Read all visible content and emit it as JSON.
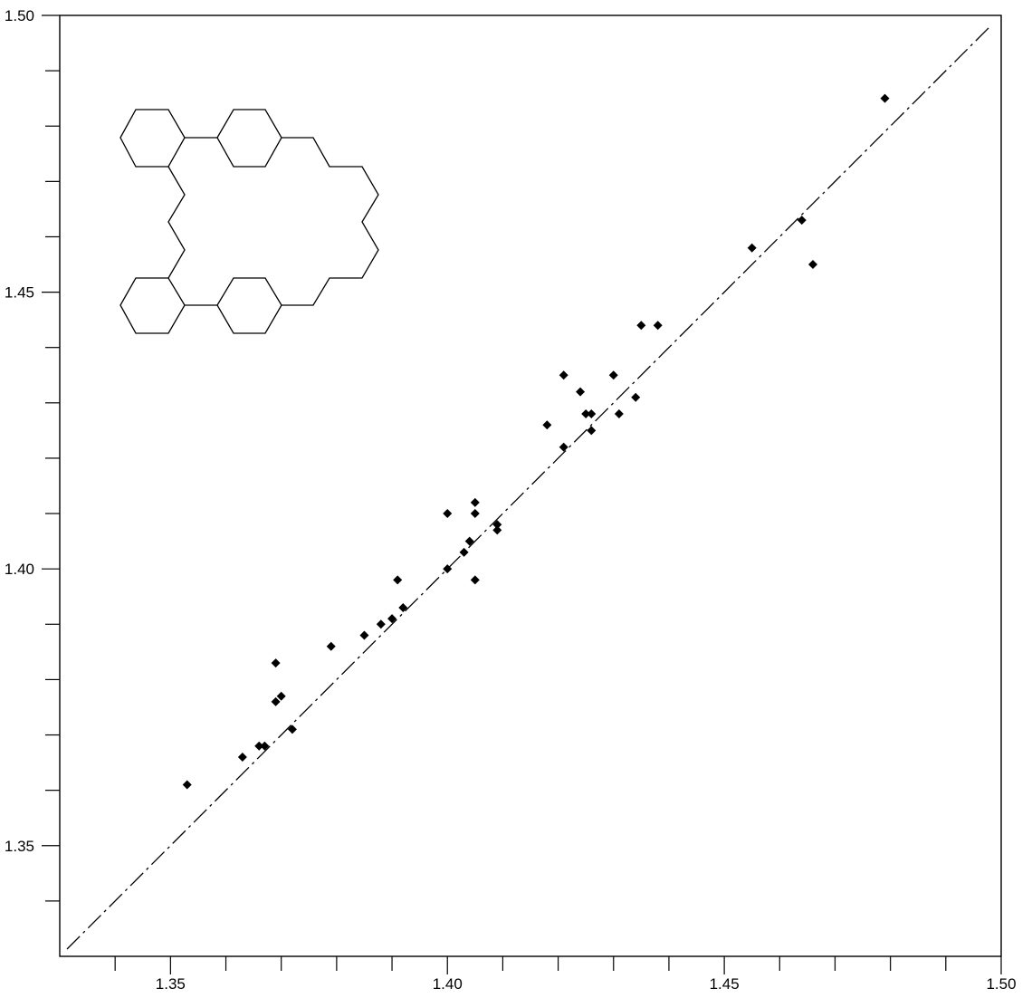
{
  "chart_data": {
    "type": "scatter",
    "title": "",
    "xlabel": "",
    "ylabel": "",
    "xlim": [
      1.33,
      1.5
    ],
    "ylim": [
      1.33,
      1.5
    ],
    "x_ticks": [
      "1.35",
      "1.40",
      "1.45",
      "1.50"
    ],
    "y_ticks": [
      "1.35",
      "1.40",
      "1.45",
      "1.50"
    ],
    "grid": false,
    "legend": "none",
    "reference_line": {
      "style": "dash-dot",
      "from": [
        1.33,
        1.33
      ],
      "to": [
        1.5,
        1.5
      ]
    },
    "marker": "diamond",
    "marker_color": "#000000",
    "inset": "molecule-structure-diagram",
    "points": [
      [
        1.479,
        1.485
      ],
      [
        1.464,
        1.463
      ],
      [
        1.466,
        1.455
      ],
      [
        1.455,
        1.458
      ],
      [
        1.438,
        1.444
      ],
      [
        1.435,
        1.444
      ],
      [
        1.421,
        1.435
      ],
      [
        1.43,
        1.435
      ],
      [
        1.424,
        1.432
      ],
      [
        1.434,
        1.431
      ],
      [
        1.425,
        1.428
      ],
      [
        1.426,
        1.428
      ],
      [
        1.431,
        1.428
      ],
      [
        1.418,
        1.426
      ],
      [
        1.426,
        1.425
      ],
      [
        1.421,
        1.422
      ],
      [
        1.405,
        1.412
      ],
      [
        1.4,
        1.41
      ],
      [
        1.405,
        1.41
      ],
      [
        1.409,
        1.408
      ],
      [
        1.409,
        1.407
      ],
      [
        1.404,
        1.405
      ],
      [
        1.403,
        1.403
      ],
      [
        1.4,
        1.4
      ],
      [
        1.391,
        1.398
      ],
      [
        1.405,
        1.398
      ],
      [
        1.392,
        1.393
      ],
      [
        1.39,
        1.391
      ],
      [
        1.388,
        1.39
      ],
      [
        1.385,
        1.388
      ],
      [
        1.379,
        1.386
      ],
      [
        1.369,
        1.383
      ],
      [
        1.37,
        1.377
      ],
      [
        1.369,
        1.376
      ],
      [
        1.372,
        1.371
      ],
      [
        1.367,
        1.368
      ],
      [
        1.366,
        1.368
      ],
      [
        1.363,
        1.366
      ],
      [
        1.353,
        1.361
      ]
    ]
  }
}
